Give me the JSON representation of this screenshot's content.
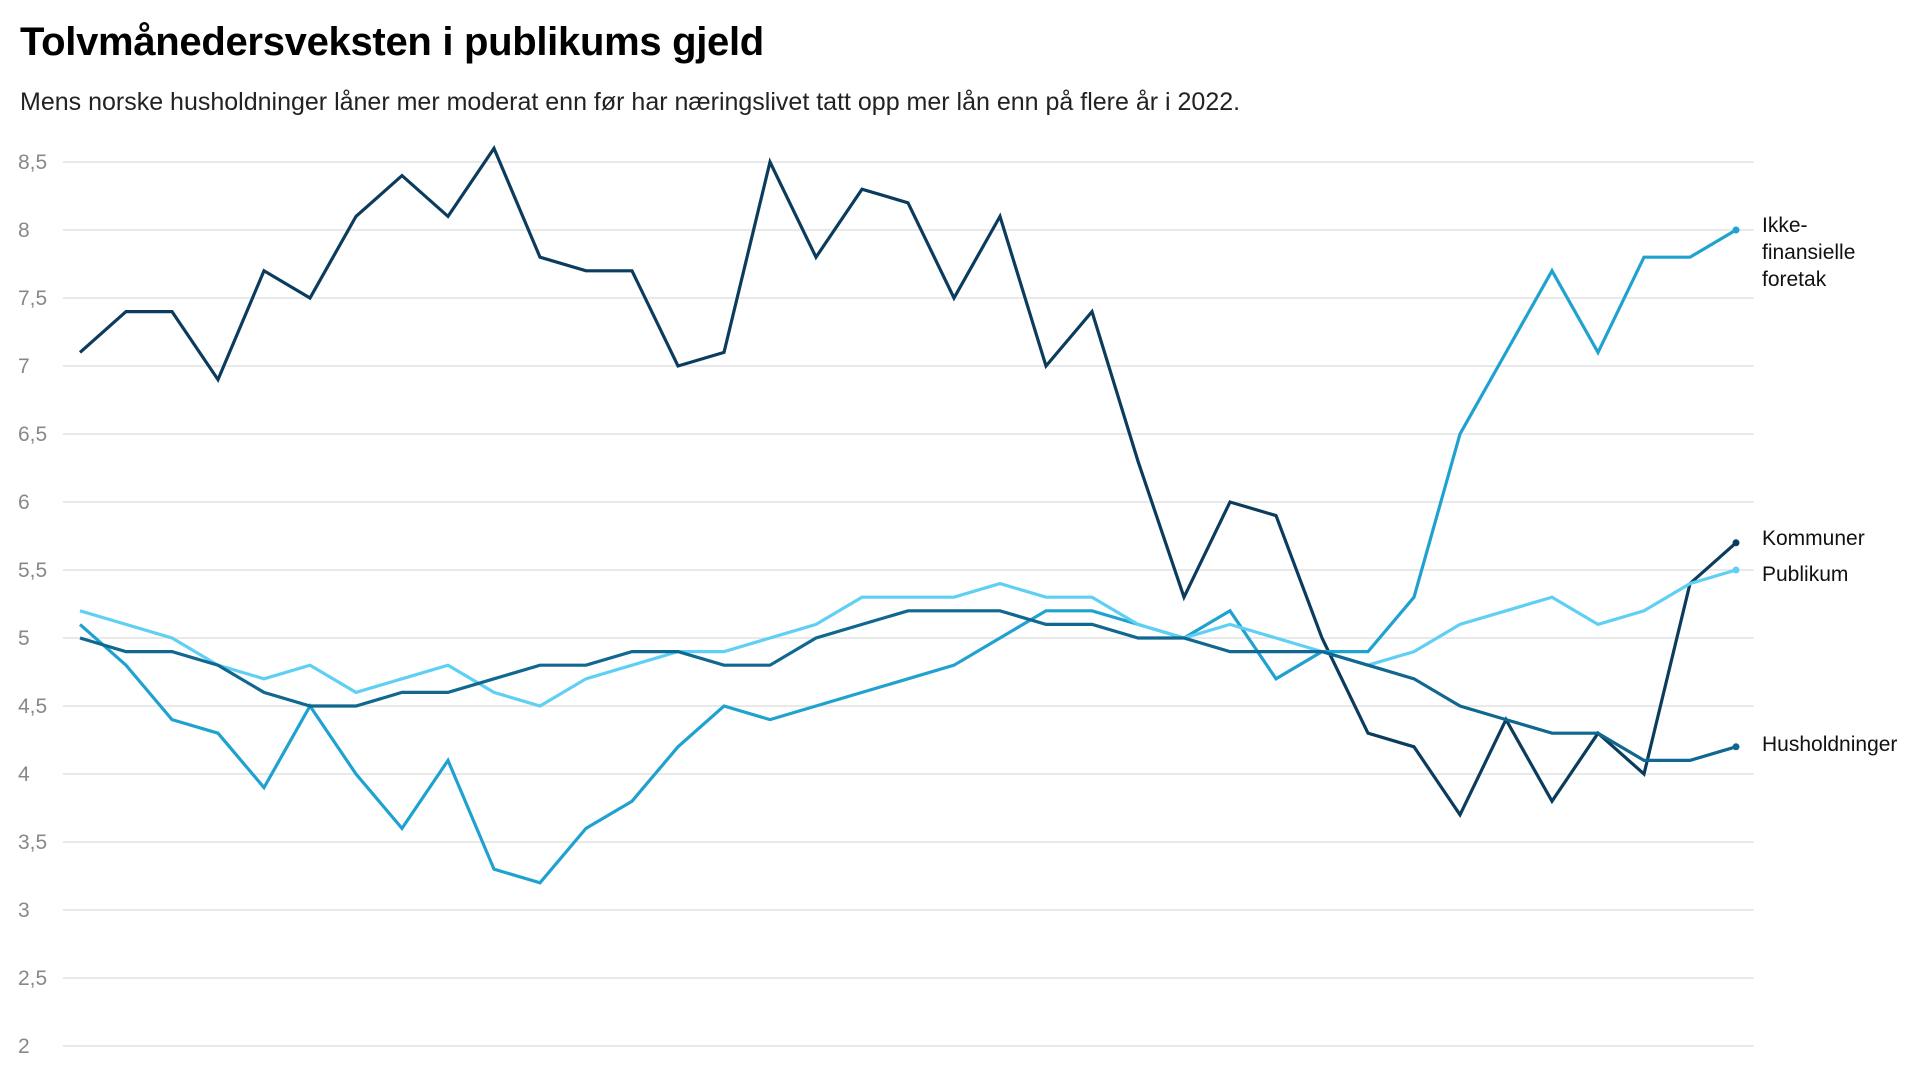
{
  "chart_data": {
    "type": "line",
    "title": "Tolvmånedersveksten i publikums gjeld",
    "subtitle": "Mens norske husholdninger låner mer moderat enn før har næringslivet tatt opp mer lån enn på flere år i 2022.",
    "xlabel": "",
    "ylabel": "",
    "ylim": [
      2,
      8.5
    ],
    "yticks": [
      2,
      2.5,
      3,
      3.5,
      4,
      4.5,
      5,
      5.5,
      6,
      6.5,
      7,
      7.5,
      8,
      8.5
    ],
    "ytick_labels": [
      "2",
      "2,5",
      "3",
      "3,5",
      "4",
      "4,5",
      "5",
      "5,5",
      "6",
      "6,5",
      "7",
      "7,5",
      "8",
      "8,5"
    ],
    "grid": true,
    "legend": "direct labels at right end of lines",
    "x": [
      1,
      2,
      3,
      4,
      5,
      6,
      7,
      8,
      9,
      10,
      11,
      12,
      13,
      14,
      15,
      16,
      17,
      18,
      19,
      20,
      21,
      22,
      23,
      24,
      25,
      26,
      27,
      28,
      29,
      30,
      31,
      32,
      33,
      34,
      35,
      36,
      37
    ],
    "series": [
      {
        "name": "Kommuner",
        "label_lines": [
          "Kommuner"
        ],
        "color": "#0b3c5d",
        "values": [
          7.1,
          7.4,
          7.4,
          6.9,
          7.7,
          7.5,
          8.1,
          8.4,
          8.1,
          8.6,
          7.8,
          7.7,
          7.7,
          7.0,
          7.1,
          8.5,
          7.8,
          8.3,
          8.2,
          7.5,
          8.1,
          7.0,
          7.4,
          6.3,
          5.3,
          6.0,
          5.9,
          5.0,
          4.3,
          4.2,
          3.7,
          4.4,
          3.8,
          4.3,
          4.0,
          5.4,
          5.7
        ]
      },
      {
        "name": "Ikke-finansielle foretak",
        "label_lines": [
          "Ikke-",
          "finansielle",
          "foretak"
        ],
        "color": "#1fa2cf",
        "values": [
          5.1,
          4.8,
          4.4,
          4.3,
          3.9,
          4.5,
          4.0,
          3.6,
          4.1,
          3.3,
          3.2,
          3.6,
          3.8,
          4.2,
          4.5,
          4.4,
          4.5,
          4.6,
          4.7,
          4.8,
          5.0,
          5.2,
          5.2,
          5.1,
          5.0,
          5.2,
          4.7,
          4.9,
          4.9,
          5.3,
          6.5,
          7.1,
          7.7,
          7.1,
          7.8,
          7.8,
          8.0
        ]
      },
      {
        "name": "Publikum",
        "label_lines": [
          "Publikum"
        ],
        "color": "#5fd0f3",
        "values": [
          5.2,
          5.1,
          5.0,
          4.8,
          4.7,
          4.8,
          4.6,
          4.7,
          4.8,
          4.6,
          4.5,
          4.7,
          4.8,
          4.9,
          4.9,
          5.0,
          5.1,
          5.3,
          5.3,
          5.3,
          5.4,
          5.3,
          5.3,
          5.1,
          5.0,
          5.1,
          5.0,
          4.9,
          4.8,
          4.9,
          5.1,
          5.2,
          5.3,
          5.1,
          5.2,
          5.4,
          5.5
        ]
      },
      {
        "name": "Husholdninger",
        "label_lines": [
          "Husholdninger"
        ],
        "color": "#10678f",
        "values": [
          5.0,
          4.9,
          4.9,
          4.8,
          4.6,
          4.5,
          4.5,
          4.6,
          4.6,
          4.7,
          4.8,
          4.8,
          4.9,
          4.9,
          4.8,
          4.8,
          5.0,
          5.1,
          5.2,
          5.2,
          5.2,
          5.1,
          5.1,
          5.0,
          5.0,
          4.9,
          4.9,
          4.9,
          4.8,
          4.7,
          4.5,
          4.4,
          4.3,
          4.3,
          4.1,
          4.1,
          4.2
        ]
      }
    ]
  }
}
